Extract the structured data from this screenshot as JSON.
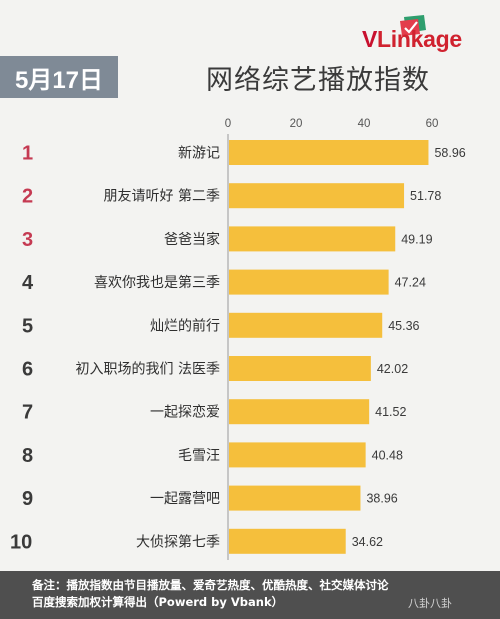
{
  "header": {
    "logo_text_v": "V",
    "logo_text_rest": "Linkage",
    "date": "5月17日",
    "title": "网络综艺播放指数"
  },
  "chart_data": {
    "type": "bar",
    "orientation": "horizontal",
    "title": "网络综艺播放指数",
    "categories": [
      "新游记",
      "朋友请听好 第二季",
      "爸爸当家",
      "喜欢你我也是第三季",
      "灿烂的前行",
      "初入职场的我们 法医季",
      "一起探恋爱",
      "毛雪汪",
      "一起露营吧",
      "大侦探第七季"
    ],
    "ranks": [
      "1",
      "2",
      "3",
      "4",
      "5",
      "6",
      "7",
      "8",
      "9",
      "10"
    ],
    "values": [
      58.96,
      51.78,
      49.19,
      47.24,
      45.36,
      42.02,
      41.52,
      40.48,
      38.96,
      34.62
    ],
    "value_labels": [
      "58.96",
      "51.78",
      "49.19",
      "47.24",
      "45.36",
      "42.02",
      "41.52",
      "40.48",
      "38.96",
      "34.62"
    ],
    "xlim": [
      0,
      60
    ],
    "xticks": [
      "0",
      "20",
      "40",
      "60"
    ],
    "grid": false,
    "colors": {
      "bar": "#f5bf3c",
      "rank_top3": "#c53a52",
      "rank_other": "#3a3a3a",
      "axis": "#9a9a9a"
    }
  },
  "footer": {
    "note_line1": "备注：播放指数由节目播放量、爱奇艺热度、优酷热度、社交媒体讨论",
    "note_line2": "百度搜索加权计算得出（Powerd by Vbank）",
    "watermark": "八卦八卦"
  }
}
